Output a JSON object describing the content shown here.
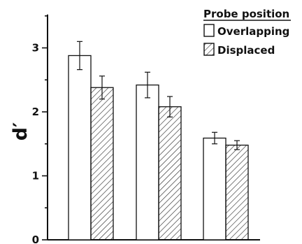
{
  "chart_data": {
    "type": "bar",
    "title": "",
    "xlabel": "",
    "ylabel": "d′",
    "ylim": [
      0,
      3.5
    ],
    "yticks": [
      0,
      1,
      2,
      3
    ],
    "categories": [
      "",
      "",
      ""
    ],
    "legend": {
      "title": "Probe position",
      "placement": "top-right"
    },
    "series": [
      {
        "name": "Overlapping",
        "fill": "open",
        "color": "#ffffff",
        "values": [
          2.88,
          2.42,
          1.59
        ],
        "errors": [
          0.22,
          0.2,
          0.09
        ]
      },
      {
        "name": "Displaced",
        "fill": "hatched",
        "color": "#ffffff",
        "values": [
          2.38,
          2.08,
          1.48
        ],
        "errors": [
          0.18,
          0.16,
          0.07
        ]
      }
    ],
    "grid": false
  }
}
